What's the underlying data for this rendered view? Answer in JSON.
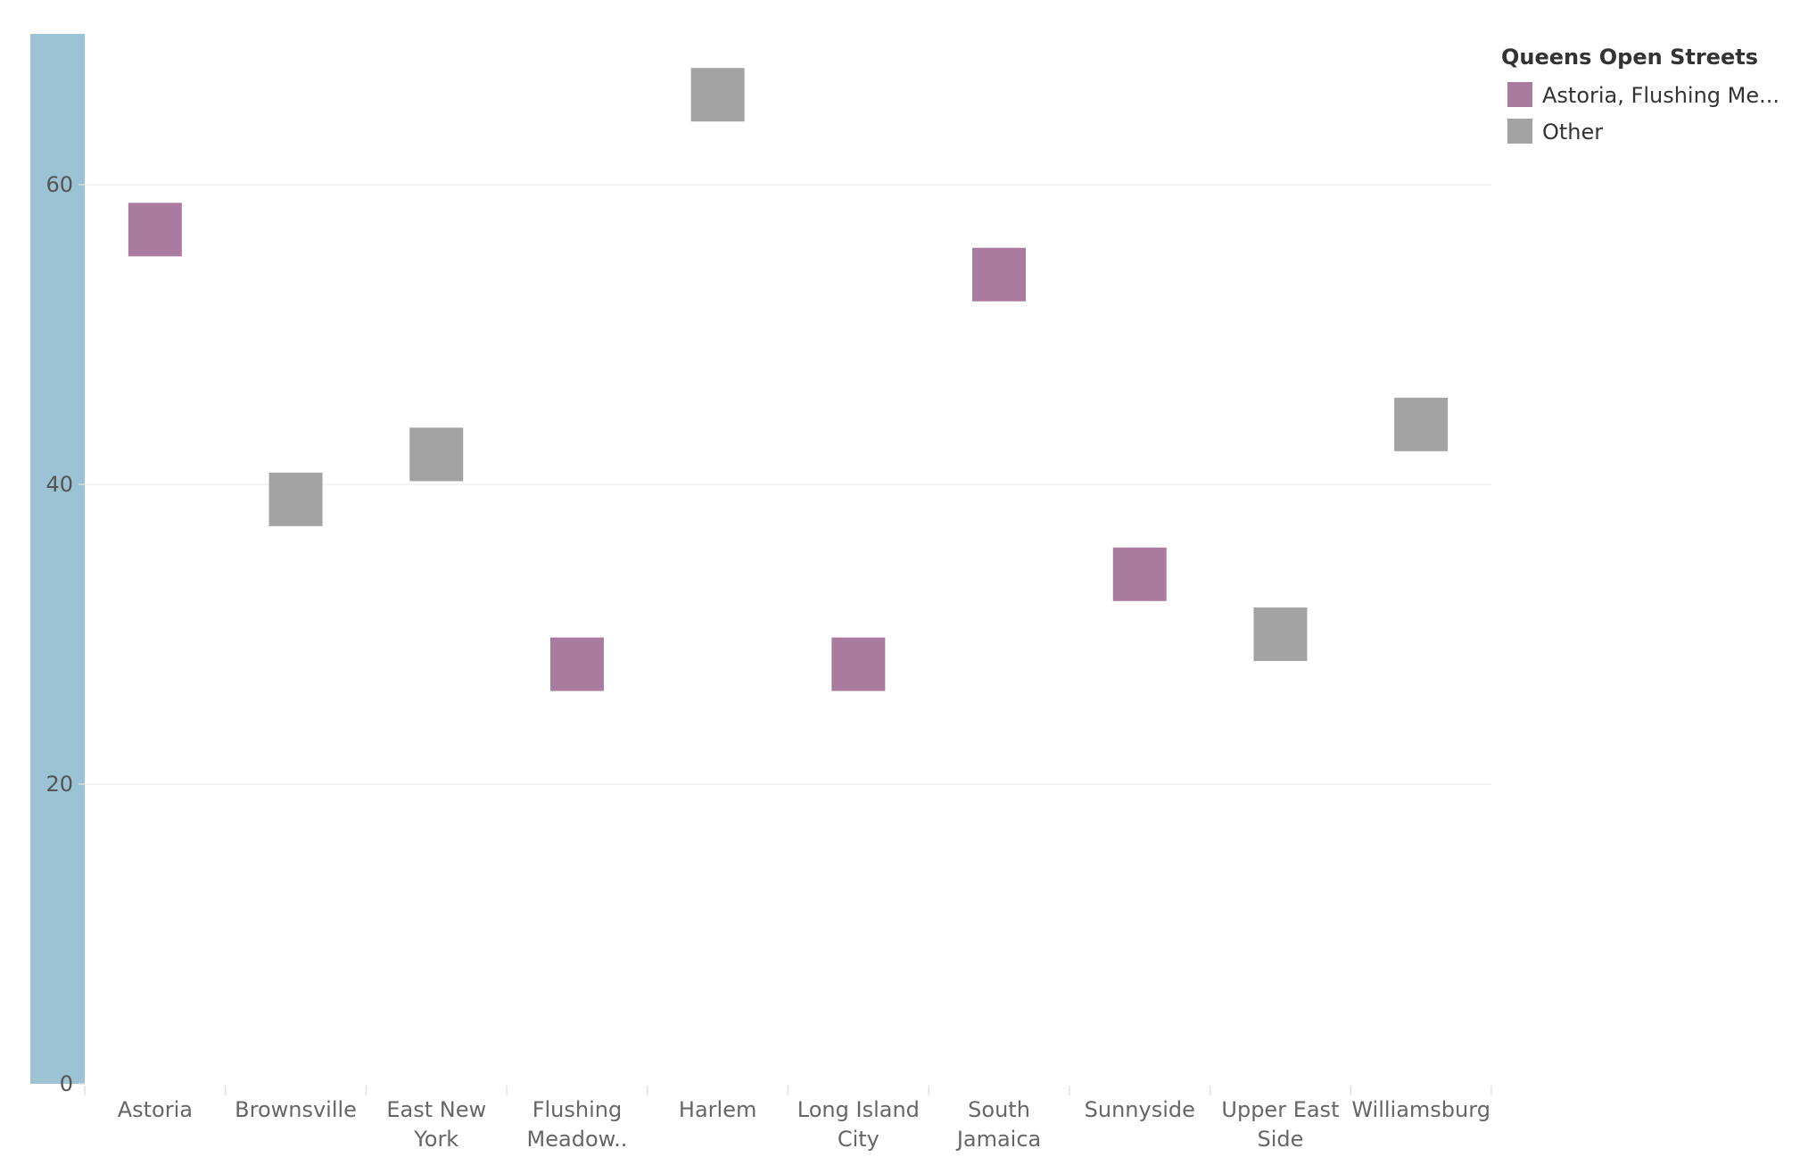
{
  "chart_data": {
    "type": "scatter",
    "categories": [
      "Astoria",
      "Brownsville",
      "East New York",
      "Flushing Meadow..",
      "Harlem",
      "Long Island City",
      "South Jamaica",
      "Sunnyside",
      "Upper East Side",
      "Williamsburg"
    ],
    "category_labels": [
      [
        "Astoria"
      ],
      [
        "Brownsville"
      ],
      [
        "East New",
        "York"
      ],
      [
        "Flushing",
        "Meadow.."
      ],
      [
        "Harlem"
      ],
      [
        "Long Island",
        "City"
      ],
      [
        "South",
        "Jamaica"
      ],
      [
        "Sunnyside"
      ],
      [
        "Upper East",
        "Side"
      ],
      [
        "Williamsburg"
      ]
    ],
    "values": [
      57,
      39,
      42,
      28,
      66,
      28,
      54,
      34,
      30,
      44
    ],
    "groups": [
      "Astoria, Flushing Me...",
      "Other",
      "Other",
      "Astoria, Flushing Me...",
      "Other",
      "Astoria, Flushing Me...",
      "Astoria, Flushing Me...",
      "Astoria, Flushing Me...",
      "Other",
      "Other"
    ],
    "y_ticks": [
      0,
      20,
      40,
      60
    ],
    "ylim": [
      0,
      70
    ],
    "grid": true,
    "legend": {
      "title": "Queens Open Streets",
      "position": "top-right",
      "items": [
        {
          "label": "Astoria, Flushing Me...",
          "color": "#a87b9f"
        },
        {
          "label": "Other",
          "color": "#a3a3a3"
        }
      ]
    },
    "colors": {
      "group_a": "#a87b9f",
      "other": "#a3a3a3",
      "axis_band": "#9bc3d3",
      "grid": "#eeeeee"
    }
  }
}
